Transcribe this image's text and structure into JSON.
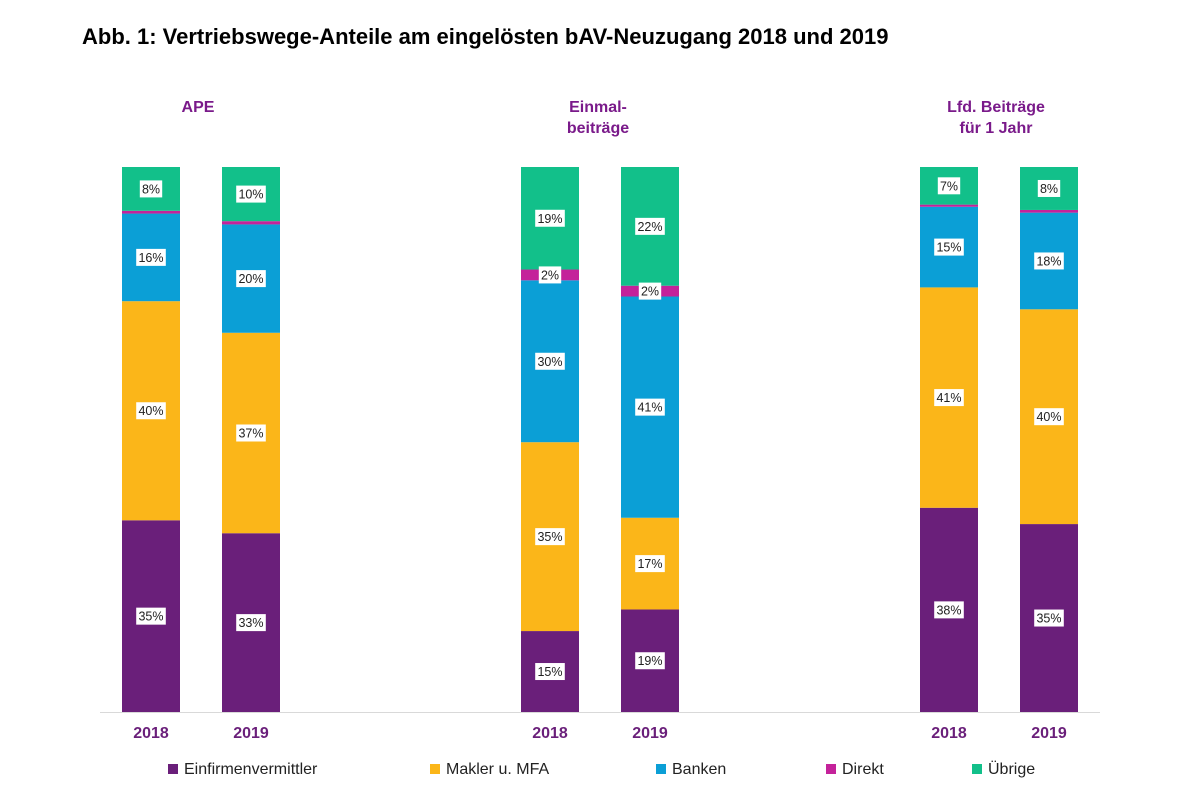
{
  "chart_data": {
    "type": "bar",
    "stacked": true,
    "title": "Abb. 1: Vertriebswege-Anteile am eingelösten bAV-Neuzugang 2018 und 2019",
    "unit": "%",
    "ylim": [
      0,
      100
    ],
    "grid": false,
    "legend_position": "bottom",
    "series_names": [
      "Einfirmenvermittler",
      "Makler u. MFA",
      "Banken",
      "Direkt",
      "Übrige"
    ],
    "series_colors": [
      "#6a1f7a",
      "#fbb619",
      "#0b9fd6",
      "#c4229a",
      "#12c08a"
    ],
    "groups": [
      {
        "title_lines": [
          "APE"
        ],
        "categories": [
          "2018",
          "2019"
        ],
        "values": [
          [
            35,
            40,
            16,
            0.5,
            8
          ],
          [
            33,
            37,
            20,
            0.6,
            10
          ]
        ],
        "labels": [
          [
            "35%",
            "40%",
            "16%",
            "",
            "8%"
          ],
          [
            "33%",
            "37%",
            "20%",
            "",
            "10%"
          ]
        ]
      },
      {
        "title_lines": [
          "Einmal-",
          "beiträge"
        ],
        "categories": [
          "2018",
          "2019"
        ],
        "values": [
          [
            15,
            35,
            30,
            2,
            19
          ],
          [
            19,
            17,
            41,
            2,
            22
          ]
        ],
        "labels": [
          [
            "15%",
            "35%",
            "30%",
            "2%",
            "19%"
          ],
          [
            "19%",
            "17%",
            "41%",
            "2%",
            "22%"
          ]
        ]
      },
      {
        "title_lines": [
          "Lfd. Beiträge",
          "für 1 Jahr"
        ],
        "categories": [
          "2018",
          "2019"
        ],
        "values": [
          [
            38,
            41,
            15,
            0.4,
            7
          ],
          [
            35,
            40,
            18,
            0.5,
            8
          ]
        ],
        "labels": [
          [
            "38%",
            "41%",
            "15%",
            "",
            "7%"
          ],
          [
            "35%",
            "40%",
            "18%",
            "",
            "8%"
          ]
        ]
      }
    ]
  },
  "colors": {
    "group_title": "#7a1a8a",
    "category_label": "#6a1f7a",
    "axis_line": "#d9d9d9"
  }
}
